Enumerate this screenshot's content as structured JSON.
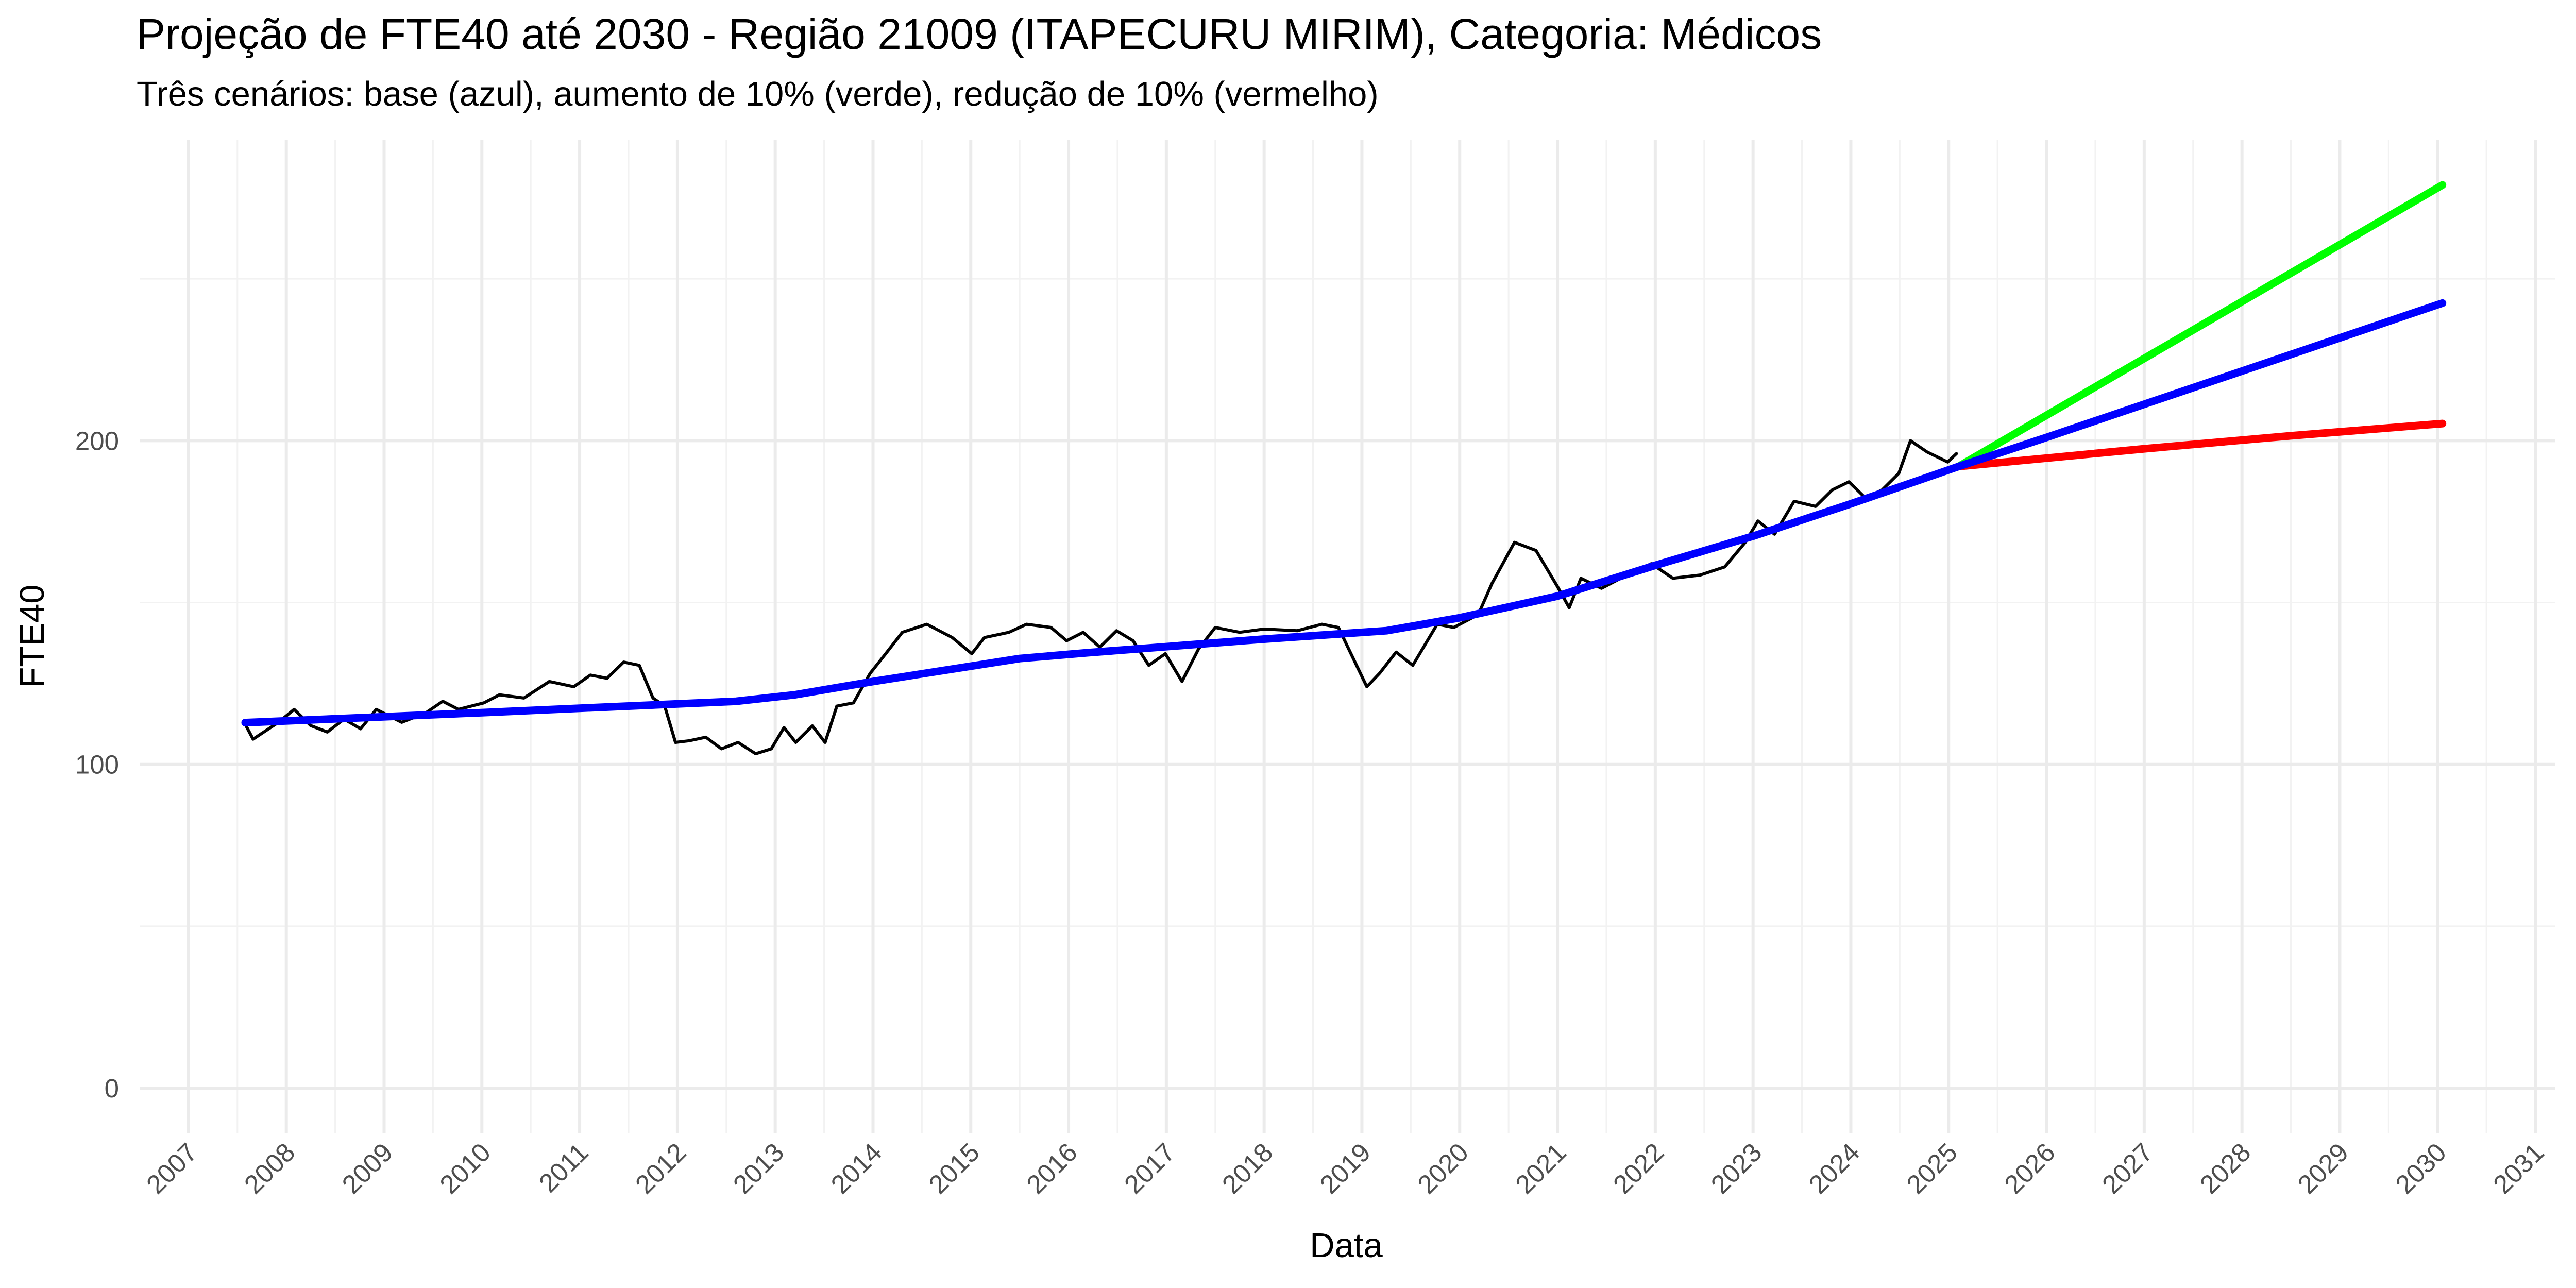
{
  "chart_data": {
    "type": "line",
    "title": "Projeção de FTE40 até 2030 - Região 21009 (ITAPECURU MIRIM), Categoria: Médicos",
    "subtitle": "Três cenários: base (azul), aumento de 10% (verde), redução de 10% (vermelho)",
    "xlabel": "Data",
    "ylabel": "FTE40",
    "xlim": [
      2006.5,
      2031.2
    ],
    "ylim": [
      -14,
      293
    ],
    "xticks": [
      2007,
      2008,
      2009,
      2010,
      2011,
      2012,
      2013,
      2014,
      2015,
      2016,
      2017,
      2018,
      2019,
      2020,
      2021,
      2022,
      2023,
      2024,
      2025,
      2026,
      2027,
      2028,
      2029,
      2030,
      2031
    ],
    "xminor": [
      2007.5,
      2008.5,
      2009.5,
      2010.5,
      2011.5,
      2012.5,
      2013.5,
      2014.5,
      2015.5,
      2016.5,
      2017.5,
      2018.5,
      2019.5,
      2020.5,
      2021.5,
      2022.5,
      2023.5,
      2024.5,
      2025.5,
      2026.5,
      2027.5,
      2028.5,
      2029.5,
      2030.5
    ],
    "yticks": [
      0,
      100,
      200
    ],
    "yminor": [
      50,
      150,
      250
    ],
    "grid": true,
    "series": [
      {
        "color": "#000000",
        "width": "thin",
        "x": [
          2007.58,
          2007.66,
          2007.92,
          2008.08,
          2008.25,
          2008.42,
          2008.59,
          2008.76,
          2008.92,
          2009.18,
          2009.43,
          2009.6,
          2009.76,
          2010.02,
          2010.18,
          2010.43,
          2010.69,
          2010.94,
          2011.11,
          2011.28,
          2011.45,
          2011.61,
          2011.75,
          2011.87,
          2011.98,
          2012.12,
          2012.29,
          2012.45,
          2012.62,
          2012.8,
          2012.96,
          2013.09,
          2013.21,
          2013.38,
          2013.51,
          2013.63,
          2013.8,
          2013.97,
          2014.13,
          2014.3,
          2014.55,
          2014.81,
          2015.01,
          2015.14,
          2015.39,
          2015.57,
          2015.82,
          2015.98,
          2016.15,
          2016.32,
          2016.49,
          2016.66,
          2016.82,
          2016.99,
          2017.16,
          2017.33,
          2017.5,
          2017.75,
          2018.0,
          2018.34,
          2018.59,
          2018.76,
          2018.88,
          2019.05,
          2019.18,
          2019.35,
          2019.52,
          2019.77,
          2019.94,
          2020.19,
          2020.33,
          2020.56,
          2020.78,
          2021.0,
          2021.12,
          2021.24,
          2021.45,
          2021.71,
          2021.96,
          2022.18,
          2022.46,
          2022.71,
          2022.92,
          2023.05,
          2023.22,
          2023.42,
          2023.64,
          2023.81,
          2023.98,
          2024.15,
          2024.32,
          2024.49,
          2024.61,
          2024.78,
          2024.99,
          2025.08
        ],
        "values": [
          112.4,
          107.8,
          113,
          117,
          112,
          110,
          114,
          111,
          117,
          113,
          116,
          119.5,
          117,
          119,
          121.5,
          120.5,
          125.6,
          124,
          127.6,
          126.6,
          131.6,
          130.6,
          120.5,
          118,
          106.8,
          107.3,
          108.4,
          104.8,
          106.8,
          103.3,
          104.8,
          111.4,
          106.8,
          111.9,
          106.8,
          118,
          119,
          128.1,
          134.2,
          140.8,
          143.3,
          139.2,
          134.2,
          139.2,
          140.8,
          143.3,
          142.3,
          138.2,
          140.8,
          136.2,
          141.3,
          138.2,
          130.6,
          134.2,
          125.6,
          135.7,
          142.3,
          140.8,
          141.8,
          141.3,
          143.3,
          142.3,
          134.7,
          124,
          128.1,
          134.7,
          130.6,
          143.3,
          142.3,
          146.3,
          155.9,
          168.6,
          166.1,
          154.9,
          148.4,
          157.5,
          154.4,
          158.5,
          162,
          157.5,
          158.5,
          161,
          168.6,
          175.2,
          171.1,
          181.3,
          179.7,
          184.8,
          187.3,
          182.3,
          184.8,
          189.9,
          200,
          196.5,
          193.4,
          196
        ]
      },
      {
        "color": "#00ff00",
        "width": "thick",
        "x": [
          2025.1,
          2030.05
        ],
        "values": [
          192,
          279
        ]
      },
      {
        "color": "#ff0000",
        "width": "thick",
        "x": [
          2025.1,
          2027,
          2028.5,
          2030.05
        ],
        "values": [
          192,
          197.5,
          201.5,
          205.3
        ]
      },
      {
        "color": "#0000ff",
        "width": "thick",
        "x": [
          2007.58,
          2010,
          2012.6,
          2013.2,
          2014,
          2015.5,
          2016.2,
          2018,
          2019.25,
          2020,
          2021,
          2022,
          2023,
          2024,
          2025.1,
          2026,
          2028,
          2030.05
        ],
        "values": [
          112.9,
          116,
          119.5,
          121.5,
          125.6,
          132.7,
          134.5,
          138.7,
          141.3,
          145.3,
          152,
          161.5,
          170.5,
          180.5,
          192,
          201,
          221.5,
          242.5
        ]
      }
    ]
  }
}
